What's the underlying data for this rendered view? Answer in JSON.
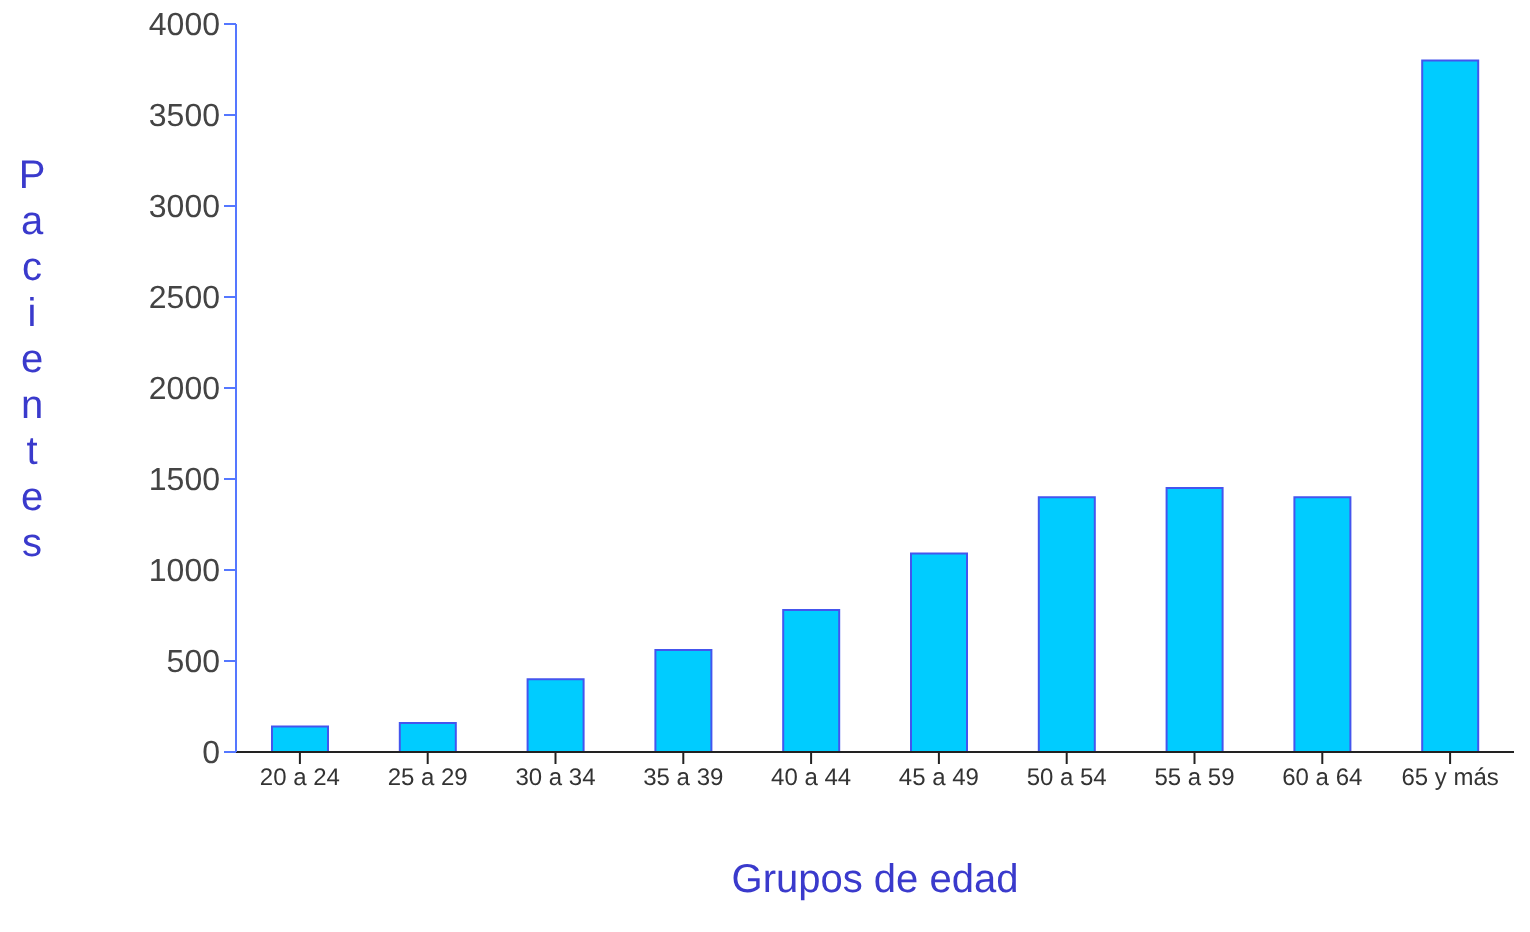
{
  "chart_data": {
    "type": "bar",
    "xlabel": "Grupos de edad",
    "ylabel": "Pacientes",
    "categories": [
      "20 a 24",
      "25 a 29",
      "30 a 34",
      "35 a 39",
      "40 a 44",
      "45 a 49",
      "50 a 54",
      "55 a 59",
      "60 a 64",
      "65 y más"
    ],
    "values": [
      140,
      160,
      400,
      560,
      780,
      1090,
      1400,
      1450,
      1400,
      3800
    ],
    "color": "#00ccff",
    "ylim": [
      0,
      4000
    ],
    "yticks": [
      0,
      500,
      1000,
      1500,
      2000,
      2500,
      3000,
      3500,
      4000
    ],
    "grid": false
  }
}
